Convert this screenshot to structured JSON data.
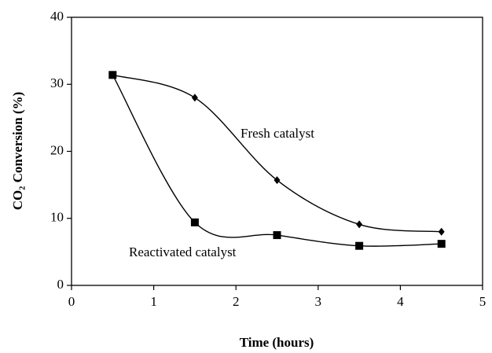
{
  "chart_data": {
    "type": "line",
    "x_label": "Time (hours)",
    "y_label": "CO₂ Conversion (%)",
    "xlim": [
      0,
      5
    ],
    "xticks": [
      0,
      1,
      2,
      3,
      4,
      5
    ],
    "ylim": [
      0,
      40
    ],
    "yticks": [
      0,
      10,
      20,
      30,
      40
    ],
    "grid": false,
    "series": [
      {
        "name": "Fresh catalyst",
        "color": "#000000",
        "marker": "diamond",
        "x": [
          0.5,
          1.5,
          2.5,
          3.5,
          4.5
        ],
        "values": [
          31.4,
          28.0,
          15.7,
          9.1,
          8.0
        ]
      },
      {
        "name": "Reactivated catalyst",
        "color": "#000000",
        "marker": "square",
        "x": [
          0.5,
          1.5,
          2.5,
          3.5,
          4.5
        ],
        "values": [
          31.4,
          9.4,
          7.5,
          5.9,
          6.2
        ]
      }
    ]
  }
}
